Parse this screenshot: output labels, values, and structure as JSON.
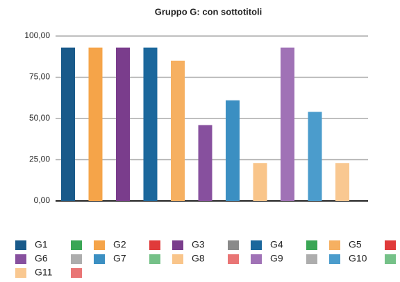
{
  "chart_data": {
    "type": "bar",
    "title": "Gruppo G: con sottotitoli",
    "categories": [
      "G1",
      "G2",
      "G3",
      "G4",
      "G5",
      "G6",
      "G7",
      "G8",
      "G9",
      "G10",
      "G11"
    ],
    "series": [
      {
        "name": "Gruppo G",
        "values": [
          93,
          93,
          93,
          93,
          85,
          46,
          61,
          23,
          93,
          54,
          23
        ]
      }
    ],
    "colors": [
      "#195a8a",
      "#f5a449",
      "#7a3d8c",
      "#1b679c",
      "#f6b061",
      "#87509e",
      "#3b8fc2",
      "#f9c58a",
      "#a072b6",
      "#4b9ccc",
      "#f9c891"
    ],
    "ylim": [
      0,
      100
    ],
    "yticks": [
      {
        "value": 0,
        "label": "0,00"
      },
      {
        "value": 25,
        "label": "25,00"
      },
      {
        "value": 50,
        "label": "50,00"
      },
      {
        "value": 75,
        "label": "75,00"
      },
      {
        "value": 100,
        "label": "100,00"
      }
    ],
    "grid": true,
    "legend": "bottom"
  }
}
